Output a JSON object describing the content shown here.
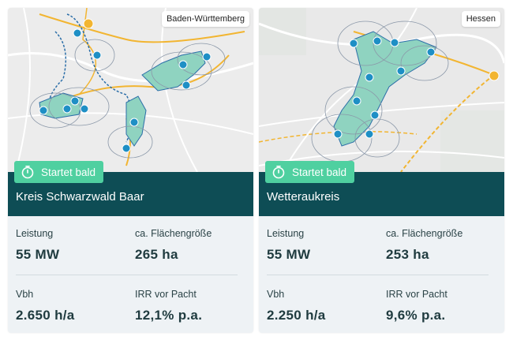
{
  "cards": [
    {
      "region": "Baden-Württemberg",
      "status": "Startet bald",
      "title": "Kreis Schwarzwald Baar",
      "stats": [
        {
          "label": "Leistung",
          "value": "55 MW"
        },
        {
          "label": "ca. Flächengröße",
          "value": "265 ha"
        },
        {
          "label": "Vbh",
          "value": "2.650 h/a"
        },
        {
          "label": "IRR vor Pacht",
          "value": "12,1% p.a."
        }
      ]
    },
    {
      "region": "Hessen",
      "status": "Startet bald",
      "title": "Wetteraukreis",
      "stats": [
        {
          "label": "Leistung",
          "value": "55 MW"
        },
        {
          "label": "ca. Flächengröße",
          "value": "253 ha"
        },
        {
          "label": "Vbh",
          "value": "2.250 h/a"
        },
        {
          "label": "IRR vor Pacht",
          "value": "9,6% p.a."
        }
      ]
    }
  ],
  "colors": {
    "status_green": "#4fd0a0",
    "title_bar": "#0e4d55",
    "stats_bg": "#eef2f5",
    "area_fill": "#8fd3c0",
    "route": "#f2b531",
    "boundary": "#2b6ea8"
  },
  "icons": {
    "status": "timer-icon",
    "turbine": "wind-turbine-marker-icon",
    "substation": "power-connection-icon"
  }
}
